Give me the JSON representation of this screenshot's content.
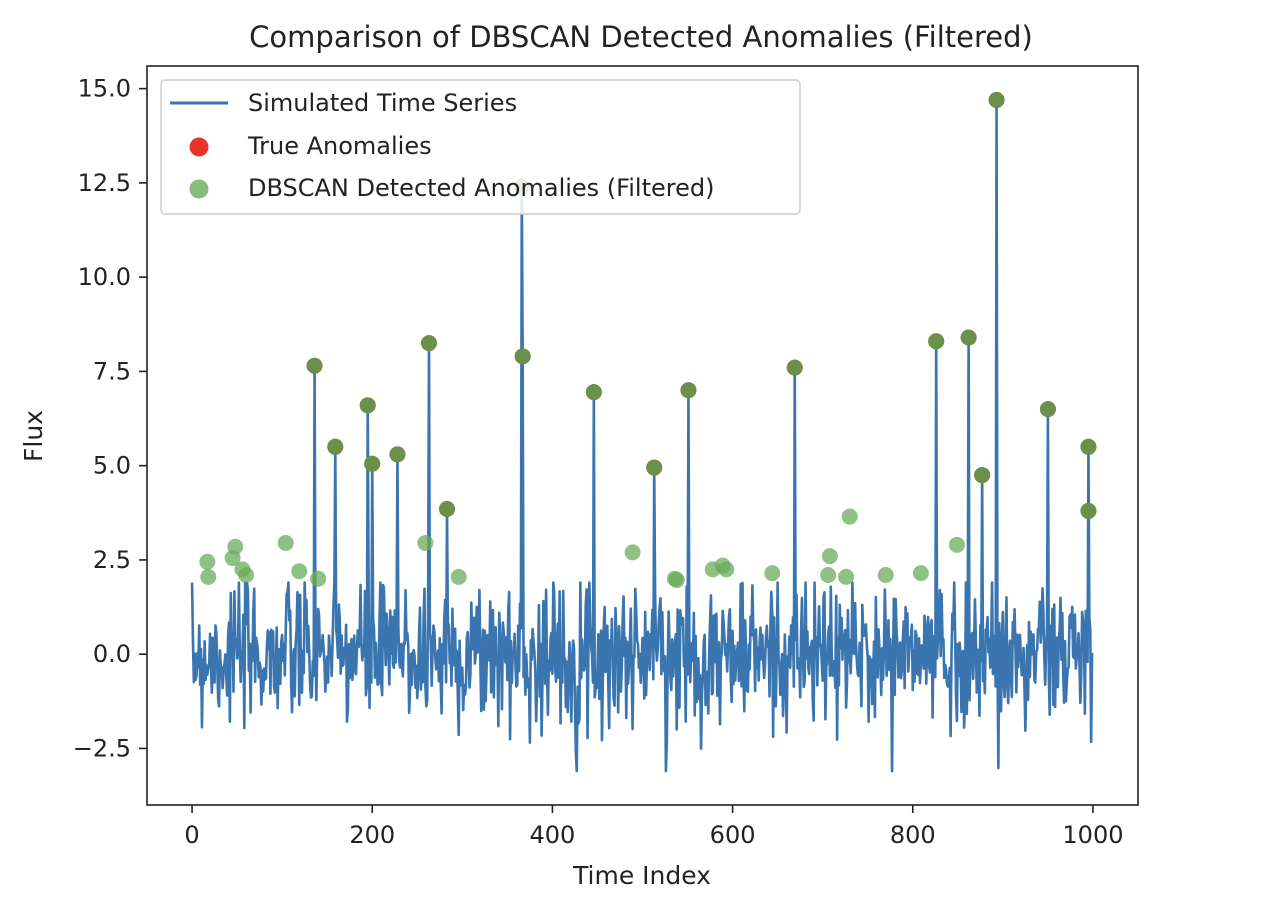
{
  "chart_data": {
    "type": "line",
    "title": "Comparison of DBSCAN Detected Anomalies (Filtered)",
    "xlabel": "Time Index",
    "ylabel": "Flux",
    "xlim": [
      -50,
      1050
    ],
    "ylim": [
      -4.0,
      15.6
    ],
    "x_ticks": [
      0,
      200,
      400,
      600,
      800,
      1000
    ],
    "x_tick_labels": [
      "0",
      "200",
      "400",
      "600",
      "800",
      "1000"
    ],
    "y_ticks": [
      -2.5,
      0.0,
      2.5,
      5.0,
      7.5,
      10.0,
      12.5,
      15.0
    ],
    "y_tick_labels": [
      "−2.5",
      "0.0",
      "2.5",
      "5.0",
      "7.5",
      "10.0",
      "12.5",
      "15.0"
    ],
    "grid": false,
    "legend_position": "upper-left",
    "colors": {
      "series": "#3a75b0",
      "true_anomalies": "#e8352a",
      "detected": "#6aab5c",
      "overlap": "#6b4110"
    },
    "series": [
      {
        "name": "Simulated Time Series",
        "kind": "line",
        "noise": {
          "count": 1000,
          "seed": 7,
          "sd": 0.95,
          "min": -3.1,
          "max": 1.9
        },
        "spikes": [
          {
            "x": 136,
            "y": 7.65
          },
          {
            "x": 159,
            "y": 5.5
          },
          {
            "x": 195,
            "y": 6.6
          },
          {
            "x": 200,
            "y": 5.05
          },
          {
            "x": 228,
            "y": 5.3
          },
          {
            "x": 263,
            "y": 8.25
          },
          {
            "x": 283,
            "y": 3.85
          },
          {
            "x": 366,
            "y": 12.4
          },
          {
            "x": 367,
            "y": 7.9
          },
          {
            "x": 446,
            "y": 6.95
          },
          {
            "x": 513,
            "y": 4.95
          },
          {
            "x": 551,
            "y": 7.0
          },
          {
            "x": 669,
            "y": 7.6
          },
          {
            "x": 826,
            "y": 8.3
          },
          {
            "x": 862,
            "y": 8.4
          },
          {
            "x": 877,
            "y": 4.75
          },
          {
            "x": 893,
            "y": 14.7
          },
          {
            "x": 950,
            "y": 6.5
          },
          {
            "x": 995,
            "y": 5.5
          },
          {
            "x": 995,
            "y": 3.8
          }
        ]
      },
      {
        "name": "True Anomalies",
        "kind": "scatter",
        "points": [
          [
            136,
            7.65
          ],
          [
            159,
            5.5
          ],
          [
            195,
            6.6
          ],
          [
            200,
            5.05
          ],
          [
            228,
            5.3
          ],
          [
            263,
            8.25
          ],
          [
            283,
            3.85
          ],
          [
            366,
            12.4
          ],
          [
            367,
            7.9
          ],
          [
            446,
            6.95
          ],
          [
            513,
            4.95
          ],
          [
            551,
            7.0
          ],
          [
            669,
            7.6
          ],
          [
            826,
            8.3
          ],
          [
            862,
            8.4
          ],
          [
            877,
            4.75
          ],
          [
            893,
            14.7
          ],
          [
            950,
            6.5
          ],
          [
            995,
            5.5
          ],
          [
            995,
            3.8
          ]
        ]
      },
      {
        "name": "DBSCAN Detected Anomalies (Filtered)",
        "kind": "scatter",
        "points": [
          [
            17,
            2.45
          ],
          [
            18,
            2.05
          ],
          [
            45,
            2.55
          ],
          [
            48,
            2.85
          ],
          [
            56,
            2.25
          ],
          [
            60,
            2.1
          ],
          [
            104,
            2.95
          ],
          [
            119,
            2.2
          ],
          [
            140,
            2.0
          ],
          [
            259,
            2.95
          ],
          [
            296,
            2.05
          ],
          [
            489,
            2.7
          ],
          [
            536,
            2.0
          ],
          [
            538,
            1.97
          ],
          [
            578,
            2.25
          ],
          [
            589,
            2.35
          ],
          [
            593,
            2.25
          ],
          [
            644,
            2.15
          ],
          [
            706,
            2.1
          ],
          [
            708,
            2.6
          ],
          [
            726,
            2.05
          ],
          [
            730,
            3.65
          ],
          [
            770,
            2.1
          ],
          [
            809,
            2.15
          ],
          [
            849,
            2.9
          ],
          [
            136,
            7.65
          ],
          [
            159,
            5.5
          ],
          [
            195,
            6.6
          ],
          [
            200,
            5.05
          ],
          [
            228,
            5.3
          ],
          [
            263,
            8.25
          ],
          [
            283,
            3.85
          ],
          [
            366,
            12.4
          ],
          [
            367,
            7.9
          ],
          [
            446,
            6.95
          ],
          [
            513,
            4.95
          ],
          [
            551,
            7.0
          ],
          [
            669,
            7.6
          ],
          [
            826,
            8.3
          ],
          [
            862,
            8.4
          ],
          [
            877,
            4.75
          ],
          [
            893,
            14.7
          ],
          [
            950,
            6.5
          ],
          [
            995,
            5.5
          ],
          [
            995,
            3.8
          ]
        ]
      }
    ]
  }
}
